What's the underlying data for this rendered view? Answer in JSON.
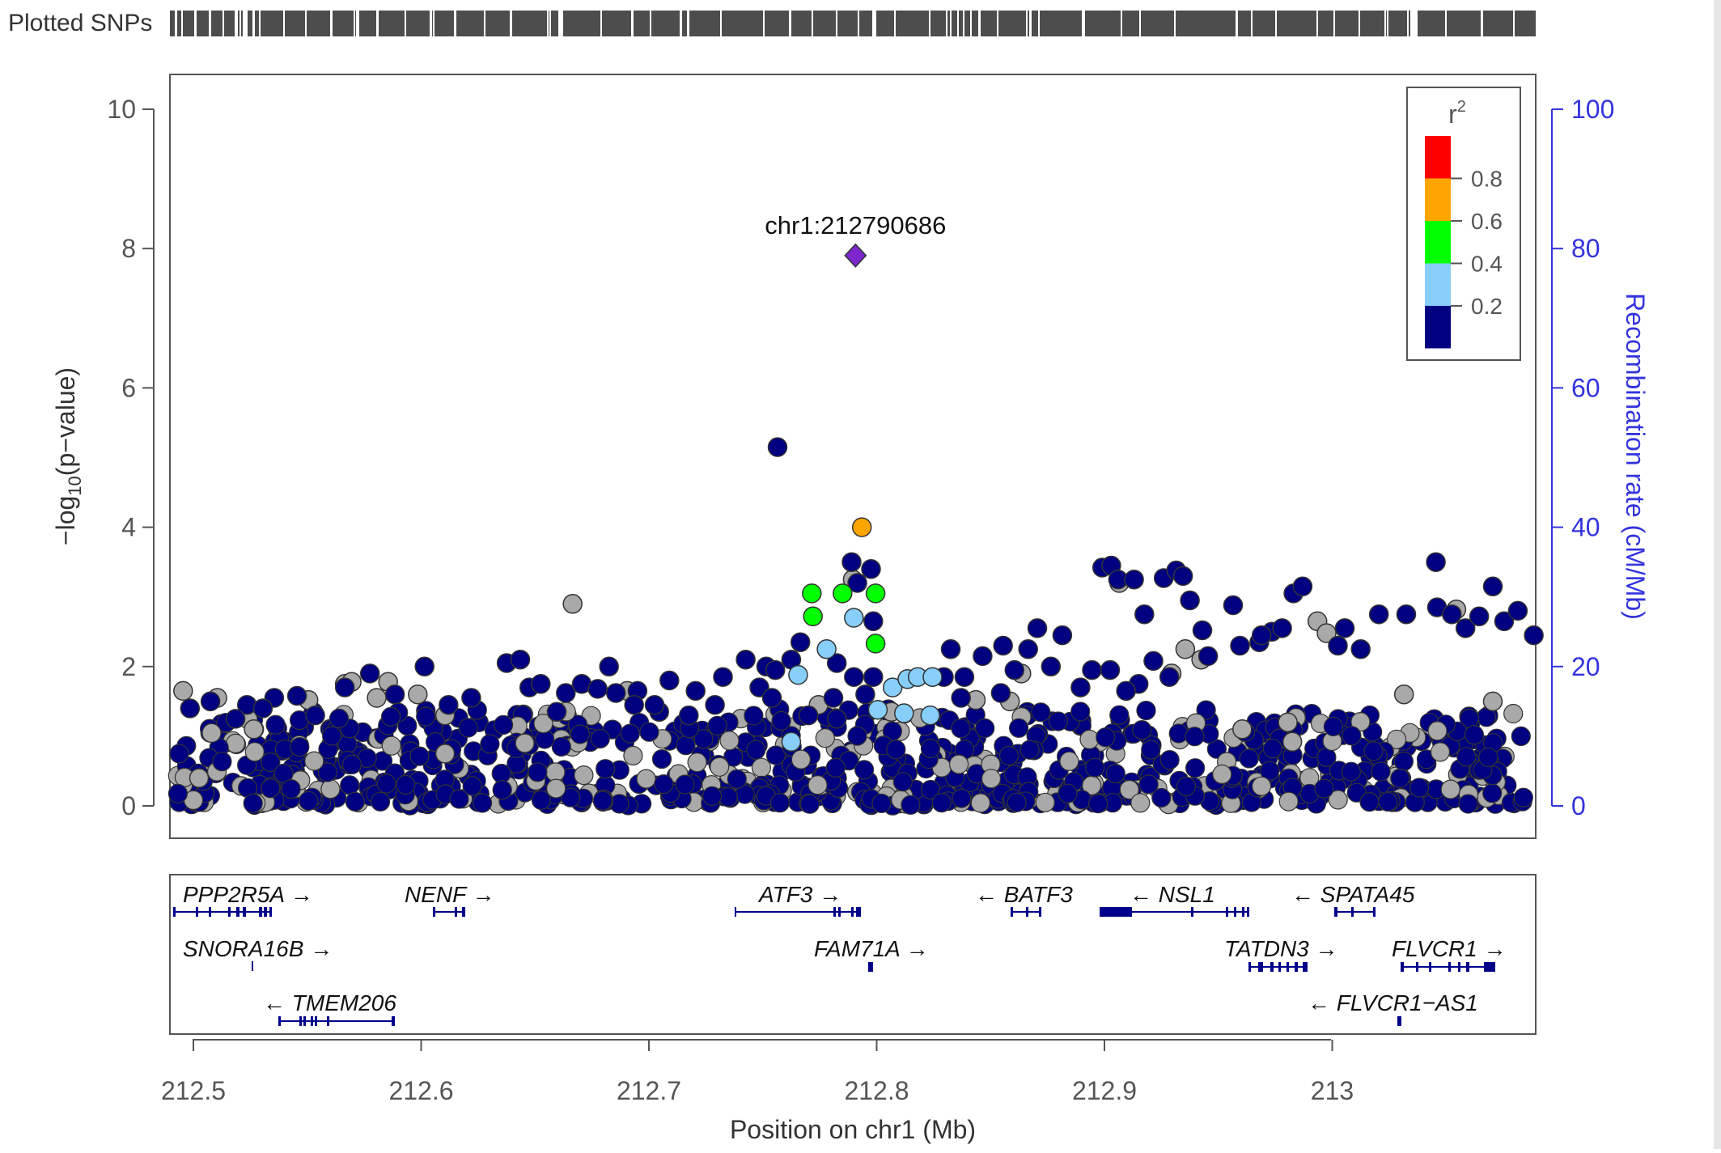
{
  "chart_data": {
    "type": "scatter",
    "title": "",
    "plotted_snps_label": "Plotted SNPs",
    "xlabel": "Position on chr1 (Mb)",
    "ylabel": "−log₁₀(p−value)",
    "ylabel_parts": {
      "prefix": "−log",
      "sub": "10",
      "suffix": "(p−value)"
    },
    "y2label": "Recombination rate (cM/Mb)",
    "xlim": [
      212.49,
      213.09
    ],
    "ylim": [
      -0.2,
      10.3
    ],
    "y2lim": [
      -2,
      103
    ],
    "x_ticks": [
      "212.5",
      "212.6",
      "212.7",
      "212.8",
      "212.9",
      "213"
    ],
    "y_ticks": [
      "0",
      "2",
      "4",
      "6",
      "8",
      "10"
    ],
    "y2_ticks": [
      "0",
      "20",
      "40",
      "60",
      "80",
      "100"
    ],
    "grid": false,
    "legend": {
      "placement": "top-right",
      "title": "r",
      "title_sup": "2",
      "ticks": [
        "0.2",
        "0.4",
        "0.6",
        "0.8"
      ],
      "bins": [
        {
          "color": "#000080"
        },
        {
          "color": "#87cefa"
        },
        {
          "color": "#00ff00"
        },
        {
          "color": "#ffa500"
        },
        {
          "color": "#ff0000"
        }
      ]
    },
    "colors": {
      "lead": "#7d26cd",
      "r2_0_0.2": "#000080",
      "r2_0.2_0.4": "#87cefa",
      "r2_0.4_0.6": "#00ff00",
      "r2_0.6_0.8": "#ffa500",
      "r2_0.8_1": "#ff0000",
      "no_ld": "#a9a9a9",
      "axis_right": "#3333dd",
      "gene": "#00008b"
    },
    "lead_snp": {
      "label": "chr1:212790686",
      "x": 212.7907,
      "y": 7.9
    },
    "series": [
      {
        "group": "r2_0.6_0.8",
        "points": [
          [
            212.7935,
            4.0
          ]
        ]
      },
      {
        "group": "r2_0.4_0.6",
        "points": [
          [
            212.7715,
            3.05
          ],
          [
            212.785,
            3.05
          ],
          [
            212.7995,
            3.05
          ],
          [
            212.772,
            2.72
          ],
          [
            212.7995,
            2.33
          ]
        ]
      },
      {
        "group": "r2_0.2_0.4",
        "points": [
          [
            212.79,
            2.7
          ],
          [
            212.778,
            2.25
          ],
          [
            212.7655,
            1.88
          ],
          [
            212.807,
            1.7
          ],
          [
            212.8135,
            1.82
          ],
          [
            212.818,
            1.85
          ],
          [
            212.8245,
            1.85
          ],
          [
            212.8005,
            1.38
          ],
          [
            212.812,
            1.33
          ],
          [
            212.8235,
            1.3
          ],
          [
            212.7625,
            0.92
          ]
        ]
      },
      {
        "group": "r2_0_0.2",
        "points": [
          [
            212.7565,
            5.15
          ],
          [
            212.789,
            3.5
          ],
          [
            212.7975,
            3.4
          ],
          [
            212.7915,
            3.2
          ],
          [
            212.7985,
            2.65
          ],
          [
            212.7515,
            2.0
          ],
          [
            212.7555,
            1.95
          ],
          [
            212.7625,
            2.1
          ],
          [
            212.7825,
            2.05
          ],
          [
            212.79,
            1.85
          ],
          [
            212.7985,
            1.85
          ],
          [
            212.781,
            1.55
          ],
          [
            212.795,
            1.6
          ],
          [
            212.7665,
            2.35
          ],
          [
            212.7425,
            2.1
          ],
          [
            212.7325,
            1.85
          ],
          [
            212.7485,
            1.7
          ],
          [
            212.754,
            1.55
          ],
          [
            212.729,
            1.45
          ],
          [
            212.7205,
            1.65
          ],
          [
            212.709,
            1.8
          ],
          [
            212.695,
            1.65
          ],
          [
            212.7045,
            1.35
          ],
          [
            212.77,
            1.3
          ],
          [
            212.7825,
            1.25
          ],
          [
            212.8295,
            1.85
          ],
          [
            212.8325,
            2.25
          ],
          [
            212.8385,
            1.85
          ],
          [
            212.8465,
            2.15
          ],
          [
            212.8555,
            2.3
          ],
          [
            212.8605,
            1.95
          ],
          [
            212.8665,
            2.25
          ],
          [
            212.8705,
            2.55
          ],
          [
            212.8815,
            2.45
          ],
          [
            212.8945,
            1.95
          ],
          [
            212.899,
            3.42
          ],
          [
            212.903,
            3.45
          ],
          [
            212.906,
            3.25
          ],
          [
            212.913,
            3.25
          ],
          [
            212.9175,
            2.75
          ],
          [
            212.926,
            3.27
          ],
          [
            212.9315,
            3.38
          ],
          [
            212.9345,
            3.3
          ],
          [
            212.9375,
            2.95
          ],
          [
            212.943,
            2.52
          ],
          [
            212.9565,
            2.88
          ],
          [
            212.9595,
            2.3
          ],
          [
            212.968,
            2.35
          ],
          [
            212.9735,
            2.5
          ],
          [
            212.978,
            2.55
          ],
          [
            212.983,
            3.05
          ],
          [
            212.987,
            3.15
          ],
          [
            213.0025,
            2.3
          ],
          [
            213.0055,
            2.55
          ],
          [
            213.0125,
            2.25
          ],
          [
            213.0205,
            2.75
          ],
          [
            213.0325,
            2.75
          ],
          [
            213.046,
            2.85
          ],
          [
            213.0525,
            2.75
          ],
          [
            213.0585,
            2.55
          ],
          [
            213.0645,
            2.72
          ],
          [
            213.0705,
            3.15
          ],
          [
            213.0755,
            2.65
          ],
          [
            213.0815,
            2.8
          ],
          [
            213.0885,
            2.45
          ],
          [
            213.0455,
            3.5
          ],
          [
            212.969,
            2.45
          ],
          [
            212.9455,
            2.15
          ],
          [
            212.9285,
            1.85
          ],
          [
            212.9215,
            2.08
          ],
          [
            212.915,
            1.75
          ],
          [
            212.9025,
            1.95
          ],
          [
            212.9095,
            1.65
          ],
          [
            212.8765,
            2.0
          ],
          [
            212.8895,
            1.7
          ],
          [
            212.8545,
            1.62
          ],
          [
            212.837,
            1.55
          ],
          [
            212.6015,
            2.0
          ],
          [
            212.6375,
            2.05
          ],
          [
            212.6435,
            2.1
          ],
          [
            212.5775,
            1.9
          ],
          [
            212.5455,
            1.58
          ],
          [
            212.5665,
            1.7
          ],
          [
            212.6475,
            1.7
          ],
          [
            212.6525,
            1.75
          ],
          [
            212.6635,
            1.62
          ],
          [
            212.6705,
            1.75
          ],
          [
            212.6775,
            1.68
          ],
          [
            212.6855,
            1.62
          ],
          [
            212.6825,
            2.0
          ],
          [
            212.622,
            1.55
          ],
          [
            212.612,
            1.45
          ],
          [
            212.5885,
            1.6
          ],
          [
            212.5355,
            1.55
          ],
          [
            212.5075,
            1.5
          ],
          [
            212.5235,
            1.45
          ],
          [
            212.4985,
            1.4
          ],
          [
            212.5185,
            1.25
          ],
          [
            212.5535,
            1.3
          ],
          [
            212.5305,
            1.4
          ],
          [
            212.6595,
            1.35
          ],
          [
            212.7025,
            1.45
          ],
          [
            212.7175,
            1.3
          ],
          [
            212.6935,
            1.45
          ]
        ]
      },
      {
        "group": "no_ld",
        "points": [
          [
            212.6665,
            2.9
          ],
          [
            212.4955,
            1.65
          ],
          [
            212.5665,
            1.75
          ],
          [
            212.5695,
            1.78
          ],
          [
            212.5855,
            1.78
          ],
          [
            212.5105,
            1.55
          ],
          [
            212.5805,
            1.55
          ],
          [
            212.5505,
            1.52
          ],
          [
            212.6105,
            1.3
          ],
          [
            212.7895,
            3.25
          ],
          [
            212.9065,
            3.2
          ],
          [
            212.9355,
            2.25
          ],
          [
            212.9425,
            2.1
          ],
          [
            212.9935,
            2.65
          ],
          [
            212.9975,
            2.48
          ],
          [
            213.0545,
            2.82
          ],
          [
            212.9295,
            1.9
          ],
          [
            212.8635,
            1.9
          ],
          [
            212.8435,
            1.52
          ],
          [
            212.9605,
            1.1
          ],
          [
            212.9825,
            0.92
          ],
          [
            212.9805,
            1.2
          ],
          [
            213.0315,
            1.6
          ],
          [
            213.0705,
            1.5
          ],
          [
            212.6905,
            1.65
          ],
          [
            212.5265,
            1.1
          ],
          [
            212.6105,
            0.75
          ],
          [
            212.6455,
            0.9
          ],
          [
            212.7745,
            1.45
          ],
          [
            212.5025,
            0.4
          ],
          [
            212.5985,
            1.6
          ],
          [
            212.8065,
            1.35
          ],
          [
            212.8585,
            1.5
          ]
        ]
      }
    ]
  },
  "genes": [
    {
      "name": "PPP2R5A",
      "dir": "→"
    },
    {
      "name": "NENF",
      "dir": "→"
    },
    {
      "name": "ATF3",
      "dir": "→"
    },
    {
      "name": "BATF3",
      "dir": "←"
    },
    {
      "name": "NSL1",
      "dir": "←"
    },
    {
      "name": "SPATA45",
      "dir": "←"
    },
    {
      "name": "SNORA16B",
      "dir": "→"
    },
    {
      "name": "FAM71A",
      "dir": "→"
    },
    {
      "name": "TATDN3",
      "dir": "→"
    },
    {
      "name": "FLVCR1",
      "dir": "→"
    },
    {
      "name": "TMEM206",
      "dir": "←"
    },
    {
      "name": "FLVCR1−AS1",
      "dir": "←"
    }
  ]
}
